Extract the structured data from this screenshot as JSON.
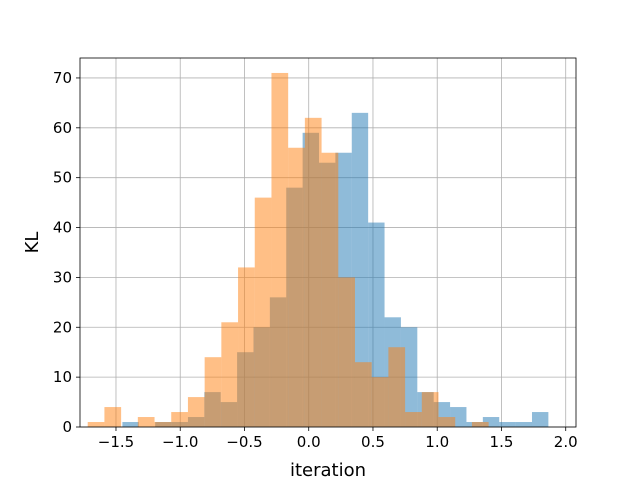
{
  "chart_data": {
    "type": "bar",
    "xlabel": "iteration",
    "ylabel": "KL",
    "xlim": [
      -1.78,
      2.08
    ],
    "ylim": [
      0,
      74
    ],
    "grid": true,
    "xticks": [
      -1.5,
      -1.0,
      -0.5,
      0.0,
      0.5,
      1.0,
      1.5,
      2.0
    ],
    "xtick_labels": [
      "−1.5",
      "−1.0",
      "−0.5",
      "0.0",
      "0.5",
      "1.0",
      "1.5",
      "2.0"
    ],
    "yticks": [
      0,
      10,
      20,
      30,
      40,
      50,
      60,
      70
    ],
    "ytick_labels": [
      "0",
      "10",
      "20",
      "30",
      "40",
      "50",
      "60",
      "70"
    ],
    "series": [
      {
        "color": "#1f77b4",
        "opacity": 0.5,
        "bin_start": -1.45,
        "bin_width": 0.1275,
        "counts": [
          1,
          0,
          1,
          1,
          2,
          7,
          5,
          15,
          20,
          26,
          48,
          59,
          53,
          55,
          63,
          41,
          22,
          20,
          7,
          5,
          4,
          1,
          2,
          1,
          1,
          3
        ]
      },
      {
        "color": "#ff7f0e",
        "opacity": 0.5,
        "bin_start": -1.72,
        "bin_width": 0.13,
        "counts": [
          1,
          4,
          0,
          2,
          1,
          3,
          6,
          14,
          21,
          32,
          46,
          71,
          56,
          62,
          55,
          30,
          13,
          10,
          16,
          3,
          7,
          2,
          0,
          1
        ]
      }
    ]
  }
}
